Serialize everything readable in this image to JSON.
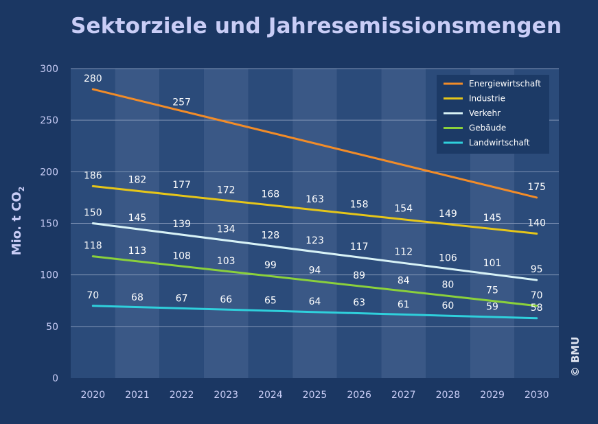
{
  "title": "Sektorziele und Jahresemissionsmengen",
  "copyright": "© BMU",
  "chart_data": {
    "type": "line",
    "title": "Sektorziele und Jahresemissionsmengen",
    "ylabel": "Mio. t CO2",
    "xlabel": "",
    "x": [
      "2020",
      "2021",
      "2022",
      "2023",
      "2024",
      "2025",
      "2026",
      "2027",
      "2028",
      "2029",
      "2030"
    ],
    "ylim": [
      0,
      300
    ],
    "yticks": [
      0,
      50,
      100,
      150,
      200,
      250,
      300
    ],
    "grid": true,
    "legend_position": "top-right",
    "series": [
      {
        "name": "Energiewirtschaft",
        "color": "#f28c28",
        "values": [
          280,
          null,
          257,
          null,
          null,
          null,
          null,
          null,
          null,
          null,
          175
        ],
        "line": [
          280,
          175
        ]
      },
      {
        "name": "Industrie",
        "color": "#e6c619",
        "values": [
          186,
          182,
          177,
          172,
          168,
          163,
          158,
          154,
          149,
          145,
          140
        ],
        "line": [
          186,
          140
        ]
      },
      {
        "name": "Verkehr",
        "color": "#d8f2f6",
        "values": [
          150,
          145,
          139,
          134,
          128,
          123,
          117,
          112,
          106,
          101,
          95
        ],
        "line": [
          150,
          95
        ]
      },
      {
        "name": "Gebäude",
        "color": "#8bd13b",
        "values": [
          118,
          113,
          108,
          103,
          99,
          94,
          89,
          84,
          80,
          75,
          70
        ],
        "line": [
          118,
          70
        ]
      },
      {
        "name": "Landwirtschaft",
        "color": "#2fd0dc",
        "values": [
          70,
          68,
          67,
          66,
          65,
          64,
          63,
          61,
          60,
          59,
          58
        ],
        "line": [
          70,
          58
        ]
      }
    ]
  }
}
